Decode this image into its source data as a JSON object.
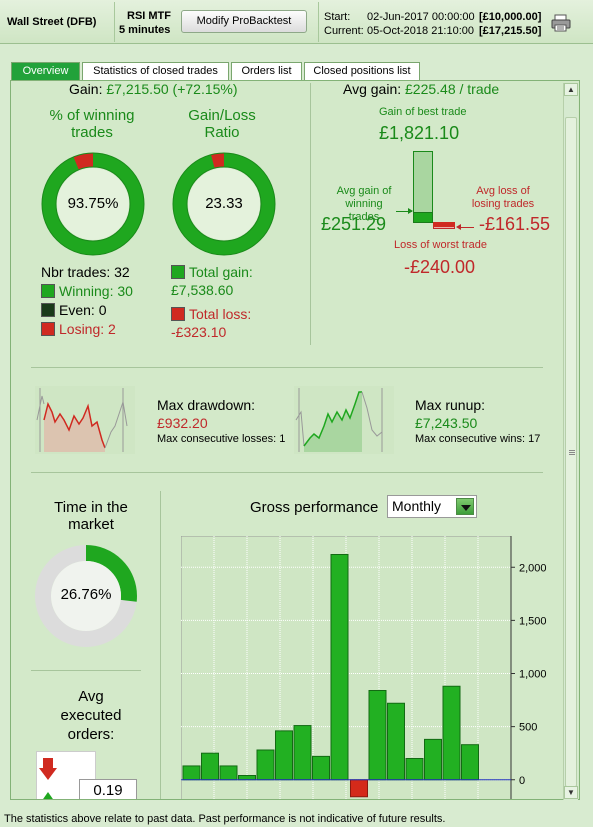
{
  "header": {
    "instrument": "Wall Street (DFB)",
    "strategy_line1": "RSI MTF",
    "strategy_line2": "5 minutes",
    "modify_button": "Modify ProBacktest",
    "start_label": "Start:",
    "start_value": "02-Jun-2017 00:00:00",
    "start_amount": "[£10,000.00]",
    "current_label": "Current:",
    "current_value": "05-Oct-2018 21:10:00",
    "current_amount": "[£17,215.50]"
  },
  "tabs": [
    {
      "label": "Overview",
      "active": true
    },
    {
      "label": "Statistics of closed trades"
    },
    {
      "label": "Orders list"
    },
    {
      "label": "Closed positions list"
    }
  ],
  "gain": {
    "label": "Gain:",
    "value": "£7,215.50 (+72.15%)"
  },
  "winning_pct": {
    "title_line1": "% of winning",
    "title_line2": "trades",
    "value": "93.75%",
    "fraction": 0.9375
  },
  "gain_loss_ratio": {
    "title_line1": "Gain/Loss",
    "title_line2": "Ratio",
    "value": "23.33",
    "gain_fraction": 0.959
  },
  "trades": {
    "nbr_label": "Nbr trades: 32",
    "winning_label": "Winning: 30",
    "even_label": "Even: 0",
    "losing_label": "Losing: 2"
  },
  "totals": {
    "gain_label": "Total gain:",
    "gain_value": "£7,538.60",
    "loss_label": "Total loss:",
    "loss_value": "-£323.10"
  },
  "avg_gain": {
    "label": "Avg gain:",
    "value": "£225.48 / trade",
    "best_label": "Gain of best trade",
    "best_value": "£1,821.10",
    "avg_win_label_line1": "Avg gain of",
    "avg_win_label_line2": "winning trades",
    "avg_win_value": "£251.29",
    "avg_loss_label_line1": "Avg loss of",
    "avg_loss_label_line2": "losing trades",
    "avg_loss_value": "-£161.55",
    "worst_label": "Loss of worst trade",
    "worst_value": "-£240.00"
  },
  "drawdown": {
    "label": "Max drawdown:",
    "value": "£932.20",
    "sub": "Max consecutive losses: 1"
  },
  "runup": {
    "label": "Max runup:",
    "value": "£7,243.50",
    "sub": "Max consecutive wins: 17"
  },
  "time_in_market": {
    "title_line1": "Time in the",
    "title_line2": "market",
    "value": "26.76%",
    "fraction": 0.2676
  },
  "executed": {
    "title_line1": "Avg",
    "title_line2": "executed",
    "title_line3": "orders:",
    "value": "0.19"
  },
  "chart_title": "Gross performance",
  "period_select": {
    "value": "Monthly"
  },
  "chart_data": {
    "type": "bar",
    "title": "Gross performance",
    "values": [
      130,
      250,
      130,
      40,
      280,
      460,
      510,
      220,
      2120,
      -160,
      840,
      720,
      200,
      380,
      880,
      330
    ],
    "ylim": [
      -200,
      2200
    ],
    "yticks": [
      "2,000",
      "1,500",
      "1,000",
      "500",
      "0"
    ],
    "ytick_values": [
      2000,
      1500,
      1000,
      500,
      0
    ],
    "colors": {
      "positive": "#22b022",
      "negative": "#d42a1a"
    }
  },
  "footer": "The statistics above relate to past data. Past performance is not indicative of future results."
}
